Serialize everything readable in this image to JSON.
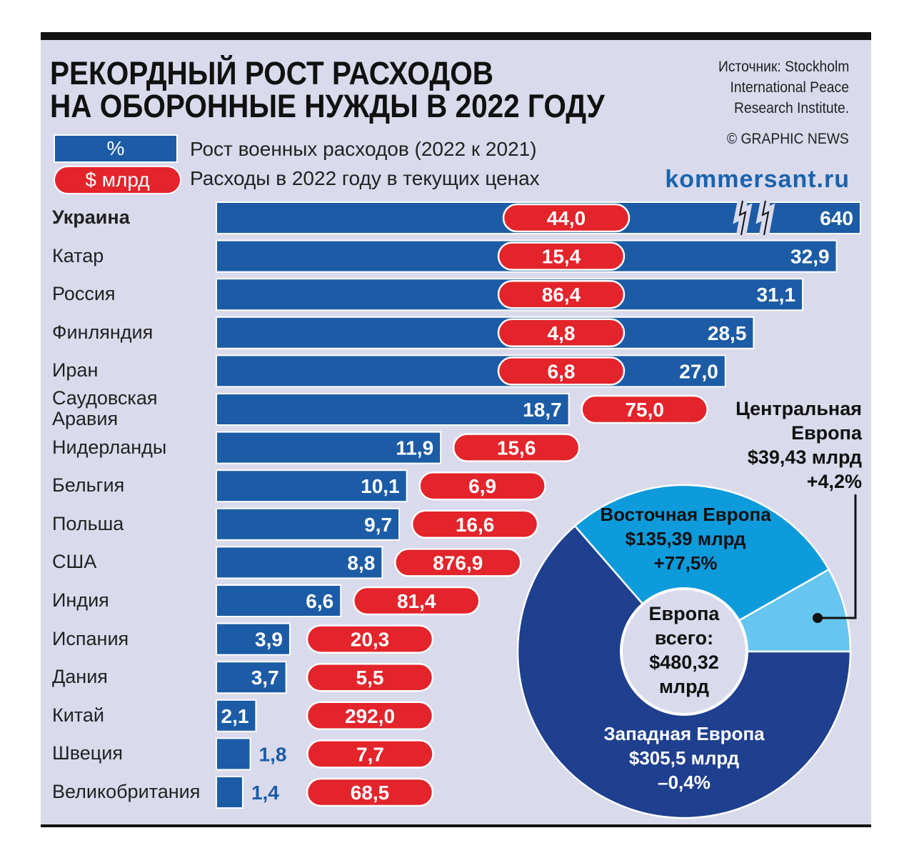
{
  "title_line1": "РЕКОРДНЫЙ РОСТ РАСХОДОВ",
  "title_line2": "НА ОБОРОННЫЕ НУЖДЫ В 2022 ГОДУ",
  "source_lines": [
    "Источник: Stockholm",
    "International Peace",
    "Research Institute."
  ],
  "credit": "© GRAPHIC NEWS",
  "site": "kommersant.ru",
  "legend": {
    "percent_label": "%",
    "percent_text": "Рост военных расходов (2022 к 2021)",
    "usd_label": "$ млрд",
    "usd_text": "Расходы в 2022 году в текущих ценах"
  },
  "colors": {
    "bar": "#1c5ca6",
    "pill": "#e3242b",
    "west": "#1f3f8f",
    "east": "#0d9bdc",
    "central": "#66c6ef"
  },
  "chart_data": [
    {
      "type": "bar",
      "orientation": "horizontal",
      "xlabel": "Рост военных расходов (2022 к 2021), %",
      "categories": [
        "Украина",
        "Катар",
        "Россия",
        "Финляндия",
        "Иран",
        "Саудовская Аравия",
        "Нидерланды",
        "Бельгия",
        "Польша",
        "США",
        "Индия",
        "Испания",
        "Дания",
        "Китай",
        "Швеция",
        "Великобритания"
      ],
      "series": [
        {
          "name": "Рост военных расходов (2022 к 2021), %",
          "values": [
            640,
            32.9,
            31.1,
            28.5,
            27.0,
            18.7,
            11.9,
            10.1,
            9.7,
            8.8,
            6.6,
            3.9,
            3.7,
            2.1,
            1.8,
            1.4
          ],
          "labels": [
            "640",
            "32,9",
            "31,1",
            "28,5",
            "27,0",
            "18,7",
            "11,9",
            "10,1",
            "9,7",
            "8,8",
            "6,6",
            "3,9",
            "3,7",
            "2,1",
            "1,8",
            "1,4"
          ]
        },
        {
          "name": "Расходы в 2022 году в текущих ценах, $ млрд",
          "values": [
            44.0,
            15.4,
            86.4,
            4.8,
            6.8,
            75.0,
            15.6,
            6.9,
            16.6,
            876.9,
            81.4,
            20.3,
            5.5,
            292.0,
            7.7,
            68.5
          ],
          "labels": [
            "44,0",
            "15,4",
            "86,4",
            "4,8",
            "6,8",
            "75,0",
            "15,6",
            "6,9",
            "16,6",
            "876,9",
            "81,4",
            "20,3",
            "5,5",
            "292,0",
            "7,7",
            "68,5"
          ]
        }
      ],
      "axis_break": "Украина"
    },
    {
      "type": "pie",
      "title": "Европа всего: $480,32 млрд",
      "center_lines": [
        "Европа",
        "всего:",
        "$480,32",
        "млрд"
      ],
      "slices": [
        {
          "name": "Центральная Европа",
          "value": 39.43,
          "lines": [
            "Центральная",
            "Европа",
            "$39,43 млрд",
            "+4,2%"
          ]
        },
        {
          "name": "Восточная Европа",
          "value": 135.39,
          "lines": [
            "Восточная Европа",
            "$135,39 млрд",
            "+77,5%"
          ]
        },
        {
          "name": "Западная Европа",
          "value": 305.5,
          "lines": [
            "Западная Европа",
            "$305,5 млрд",
            "–0,4%"
          ]
        }
      ]
    }
  ]
}
